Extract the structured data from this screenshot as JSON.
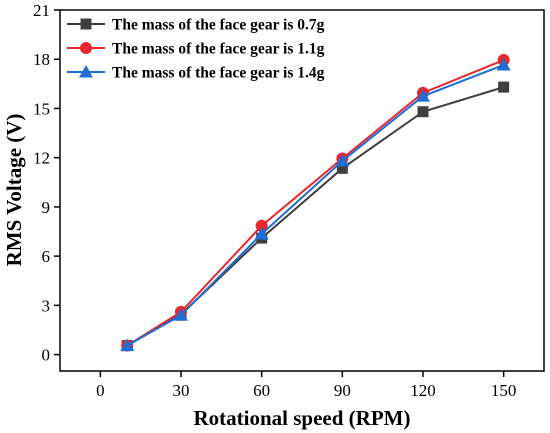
{
  "chart_data": {
    "type": "line",
    "xlabel": "Rotational speed (RPM)",
    "ylabel": "RMS Voltage (V)",
    "xlim": [
      -15,
      165
    ],
    "ylim": [
      -1,
      21
    ],
    "x_ticks": [
      0,
      30,
      60,
      90,
      120,
      150
    ],
    "y_ticks": [
      0,
      3,
      6,
      9,
      12,
      15,
      18,
      21
    ],
    "grid": false,
    "legend_position": "top-left",
    "x": [
      10,
      30,
      60,
      90,
      120,
      150
    ],
    "series": [
      {
        "name": "The mass of the face gear is 0.7g",
        "color": "#3f3f3f",
        "marker": "square",
        "values": [
          0.55,
          2.45,
          7.1,
          11.35,
          14.8,
          16.3
        ]
      },
      {
        "name": "The mass of the face gear is 1.1g",
        "color": "#e8262c",
        "marker": "circle",
        "values": [
          0.55,
          2.6,
          7.85,
          11.95,
          15.95,
          17.95
        ]
      },
      {
        "name": "The mass of the face gear is 1.4g",
        "color": "#1f6ed4",
        "marker": "triangle",
        "values": [
          0.55,
          2.4,
          7.35,
          11.8,
          15.75,
          17.65
        ]
      }
    ]
  }
}
